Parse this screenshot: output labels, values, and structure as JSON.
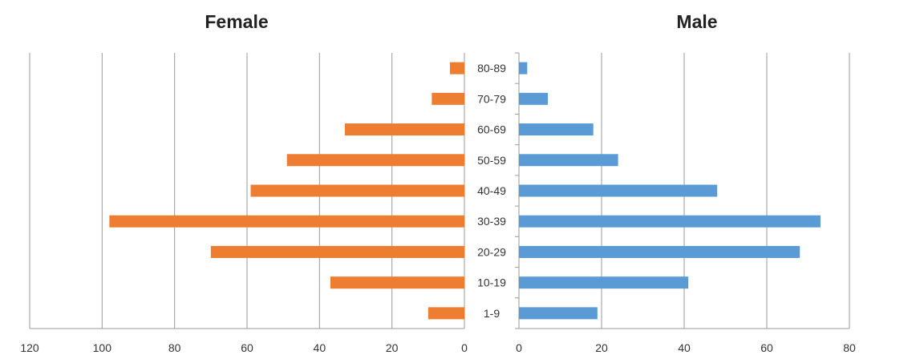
{
  "chart_data": [
    {
      "type": "bar",
      "orientation": "horizontal",
      "title": "Female",
      "categories": [
        "80-89",
        "70-79",
        "60-69",
        "50-59",
        "40-49",
        "30-39",
        "20-29",
        "10-19",
        "1-9"
      ],
      "values": [
        4,
        9,
        33,
        49,
        59,
        98,
        70,
        37,
        10
      ],
      "xlim": [
        0,
        120
      ],
      "x_reversed": true,
      "xticks": [
        "120",
        "100",
        "80",
        "60",
        "40",
        "20",
        "0"
      ],
      "grid": "vertical",
      "color": "#ED7D31"
    },
    {
      "type": "bar",
      "orientation": "horizontal",
      "title": "Male",
      "categories": [
        "80-89",
        "70-79",
        "60-69",
        "50-59",
        "40-49",
        "30-39",
        "20-29",
        "10-19",
        "1-9"
      ],
      "values": [
        2,
        7,
        18,
        24,
        48,
        73,
        68,
        41,
        19
      ],
      "xlim": [
        0,
        80
      ],
      "xticks": [
        "0",
        "20",
        "40",
        "60",
        "80"
      ],
      "grid": "vertical",
      "color": "#5B9BD5"
    }
  ]
}
